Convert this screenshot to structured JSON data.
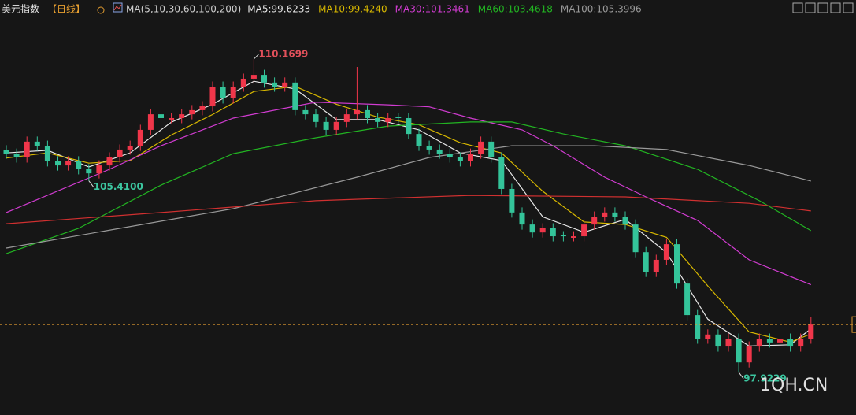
{
  "header": {
    "title": "美元指数",
    "period": "【日线】",
    "ma_label": "MA(5,10,30,60,100,200)"
  },
  "watermark": "1QH.CN",
  "chart_data": {
    "type": "candlestick",
    "ylim": [
      96.5,
      111.8
    ],
    "up_color": "#f0364a",
    "down_color": "#34c49a",
    "annotations": [
      "110.1699",
      "105.4100",
      "97.9229"
    ],
    "last_price_color": "#e09a30",
    "ohlc": [
      [
        106.6,
        106.8,
        106.27,
        106.47
      ],
      [
        106.47,
        106.67,
        106.12,
        106.32
      ],
      [
        106.32,
        107.14,
        106.12,
        106.94
      ],
      [
        106.94,
        107.14,
        106.58,
        106.78
      ],
      [
        106.78,
        106.98,
        105.97,
        106.17
      ],
      [
        106.17,
        106.37,
        105.81,
        106.01
      ],
      [
        106.01,
        106.37,
        105.81,
        106.17
      ],
      [
        106.17,
        106.37,
        105.66,
        105.86
      ],
      [
        105.86,
        106.06,
        105.41,
        105.7
      ],
      [
        105.7,
        106.21,
        105.5,
        106.01
      ],
      [
        106.01,
        106.52,
        105.81,
        106.32
      ],
      [
        106.32,
        106.83,
        106.12,
        106.63
      ],
      [
        106.63,
        106.98,
        106.43,
        106.78
      ],
      [
        106.78,
        107.6,
        106.58,
        107.4
      ],
      [
        107.4,
        108.21,
        107.2,
        108.01
      ],
      [
        108.01,
        108.21,
        107.66,
        107.86
      ],
      [
        107.8,
        108.06,
        107.66,
        107.86
      ],
      [
        107.86,
        108.21,
        107.66,
        108.01
      ],
      [
        108.01,
        108.37,
        107.81,
        108.17
      ],
      [
        108.17,
        108.52,
        107.97,
        108.32
      ],
      [
        108.32,
        109.29,
        108.12,
        109.09
      ],
      [
        109.09,
        109.29,
        108.43,
        108.63
      ],
      [
        108.63,
        109.29,
        108.43,
        109.09
      ],
      [
        109.09,
        109.6,
        108.89,
        109.4
      ],
      [
        109.4,
        110.1699,
        109.2,
        109.55
      ],
      [
        109.55,
        109.75,
        109.05,
        109.25
      ],
      [
        109.25,
        109.45,
        108.89,
        109.09
      ],
      [
        109.09,
        109.45,
        108.89,
        109.25
      ],
      [
        109.25,
        109.45,
        107.97,
        108.17
      ],
      [
        108.17,
        108.37,
        107.81,
        108.01
      ],
      [
        108.01,
        108.21,
        107.51,
        107.71
      ],
      [
        107.71,
        107.91,
        107.2,
        107.4
      ],
      [
        107.4,
        107.91,
        107.2,
        107.71
      ],
      [
        107.71,
        108.21,
        107.51,
        108.01
      ],
      [
        108.01,
        109.86,
        107.81,
        108.17
      ],
      [
        108.17,
        108.37,
        107.66,
        107.86
      ],
      [
        107.86,
        108.06,
        107.51,
        107.71
      ],
      [
        107.71,
        108.06,
        107.51,
        107.86
      ],
      [
        107.92,
        108.06,
        107.66,
        107.86
      ],
      [
        107.86,
        108.06,
        107.04,
        107.24
      ],
      [
        107.24,
        107.44,
        106.58,
        106.78
      ],
      [
        106.78,
        106.98,
        106.43,
        106.63
      ],
      [
        106.63,
        106.83,
        106.27,
        106.47
      ],
      [
        106.47,
        106.67,
        106.12,
        106.32
      ],
      [
        106.32,
        106.52,
        105.97,
        106.17
      ],
      [
        106.17,
        106.67,
        105.97,
        106.47
      ],
      [
        106.47,
        107.14,
        106.27,
        106.94
      ],
      [
        106.94,
        107.14,
        106.12,
        106.32
      ],
      [
        106.32,
        106.52,
        104.89,
        105.09
      ],
      [
        105.09,
        105.29,
        103.97,
        104.17
      ],
      [
        104.17,
        104.37,
        103.5,
        103.7
      ],
      [
        103.7,
        103.9,
        103.19,
        103.39
      ],
      [
        103.39,
        103.75,
        103.19,
        103.55
      ],
      [
        103.55,
        103.75,
        103.04,
        103.24
      ],
      [
        103.3,
        103.44,
        103.04,
        103.24
      ],
      [
        103.18,
        103.44,
        103.04,
        103.24
      ],
      [
        103.24,
        103.9,
        103.04,
        103.7
      ],
      [
        103.7,
        104.21,
        103.5,
        104.01
      ],
      [
        104.01,
        104.37,
        103.81,
        104.17
      ],
      [
        104.17,
        104.37,
        103.81,
        104.01
      ],
      [
        104.01,
        104.21,
        103.5,
        103.7
      ],
      [
        103.7,
        103.9,
        102.42,
        102.62
      ],
      [
        102.62,
        102.82,
        101.65,
        101.85
      ],
      [
        101.85,
        102.52,
        101.65,
        102.32
      ],
      [
        102.32,
        103.13,
        102.12,
        102.93
      ],
      [
        102.93,
        103.13,
        101.19,
        101.39
      ],
      [
        101.39,
        101.59,
        99.96,
        100.16
      ],
      [
        100.16,
        100.36,
        99.04,
        99.24
      ],
      [
        99.24,
        99.6,
        99.04,
        99.4
      ],
      [
        99.4,
        99.6,
        98.73,
        98.93
      ],
      [
        98.93,
        99.44,
        98.73,
        99.24
      ],
      [
        99.24,
        99.44,
        97.9229,
        98.31
      ],
      [
        98.31,
        99.13,
        98.11,
        98.93
      ],
      [
        98.93,
        99.44,
        98.73,
        99.24
      ],
      [
        99.24,
        99.44,
        98.89,
        99.09
      ],
      [
        99.09,
        99.44,
        98.89,
        99.24
      ],
      [
        99.24,
        99.44,
        98.73,
        98.93
      ],
      [
        98.93,
        99.44,
        98.73,
        99.24
      ],
      [
        99.24,
        100.1,
        99.04,
        99.79
      ]
    ],
    "series": [
      {
        "name": "MA5:99.6233",
        "color": "#e6e6e6",
        "x": [
          0,
          4,
          8,
          12,
          16,
          20,
          24,
          28,
          32,
          36,
          40,
          44,
          48,
          52,
          56,
          60,
          64,
          68,
          72,
          76,
          78
        ],
        "values": [
          106.5,
          106.6,
          105.95,
          106.5,
          107.7,
          108.4,
          109.3,
          109.0,
          107.8,
          107.8,
          107.4,
          106.5,
          106.2,
          104.0,
          103.4,
          103.9,
          102.6,
          100.0,
          98.95,
          99.0,
          99.6233
        ]
      },
      {
        "name": "MA10:99.4240",
        "color": "#d8b800",
        "x": [
          0,
          4,
          8,
          12,
          16,
          20,
          24,
          28,
          32,
          36,
          40,
          44,
          48,
          52,
          56,
          60,
          64,
          68,
          72,
          76,
          78
        ],
        "values": [
          106.3,
          106.5,
          106.1,
          106.2,
          107.2,
          108.0,
          108.9,
          109.1,
          108.4,
          107.9,
          107.6,
          106.9,
          106.5,
          105.0,
          103.8,
          103.7,
          103.2,
          101.3,
          99.5,
          99.1,
          99.424
        ]
      },
      {
        "name": "MA30:101.3461",
        "color": "#d23cd2",
        "x": [
          0,
          10,
          15,
          22,
          30,
          37,
          41,
          45,
          50,
          53,
          58,
          62,
          67,
          72,
          78
        ],
        "values": [
          104.17,
          105.86,
          106.78,
          107.86,
          108.48,
          108.38,
          108.3,
          107.86,
          107.4,
          106.78,
          105.55,
          104.78,
          103.86,
          102.32,
          101.3461
        ]
      },
      {
        "name": "MA60:103.4618",
        "color": "#22b422",
        "x": [
          0,
          7,
          15,
          22,
          30,
          37,
          45,
          49,
          54,
          60,
          67,
          73,
          78
        ],
        "values": [
          102.56,
          103.55,
          105.24,
          106.47,
          107.09,
          107.55,
          107.71,
          107.71,
          107.24,
          106.78,
          105.86,
          104.63,
          103.4618
        ]
      },
      {
        "name": "MA100:105.3996",
        "color": "#9a9a9a",
        "x": [
          0,
          11,
          22,
          34,
          41,
          49,
          57,
          64,
          72,
          78
        ],
        "values": [
          102.78,
          103.55,
          104.32,
          105.55,
          106.32,
          106.78,
          106.78,
          106.63,
          106.01,
          105.3996
        ]
      },
      {
        "color": "#d03030",
        "x": [
          0,
          15,
          30,
          45,
          60,
          72,
          78
        ],
        "values": [
          103.73,
          104.17,
          104.63,
          104.84,
          104.78,
          104.53,
          104.23
        ]
      }
    ]
  }
}
